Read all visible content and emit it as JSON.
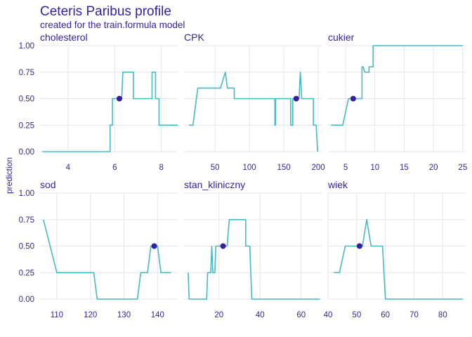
{
  "title": "Ceteris Paribus profile",
  "subtitle": "created for the train.formula model",
  "ylabel": "prediction",
  "colors": {
    "line": "#46bac2",
    "point": "#371ea3",
    "text": "#371ea3",
    "grid": "#e6e6ea"
  },
  "chart_data": {
    "type": "line",
    "ylim": [
      0,
      1
    ],
    "yticks": [
      0,
      0.25,
      0.5,
      0.75,
      1
    ],
    "ytick_labels": [
      "0.00",
      "0.25",
      "0.50",
      "0.75",
      "1.00"
    ],
    "grid": true,
    "panels": [
      {
        "name": "cholesterol",
        "xlim": [
          2.8,
          8.7
        ],
        "xticks": [
          4,
          6,
          8
        ],
        "xtick_labels": [
          "4",
          "6",
          "8"
        ],
        "observation": {
          "x": 6.2,
          "y": 0.5
        },
        "series": [
          [
            2.9,
            0
          ],
          [
            5.8,
            0
          ],
          [
            5.8,
            0.25
          ],
          [
            5.9,
            0.25
          ],
          [
            5.9,
            0.5
          ],
          [
            6.3,
            0.5
          ],
          [
            6.35,
            0.75
          ],
          [
            6.8,
            0.75
          ],
          [
            6.8,
            0.5
          ],
          [
            7.6,
            0.5
          ],
          [
            7.6,
            0.75
          ],
          [
            7.75,
            0.75
          ],
          [
            7.75,
            0.5
          ],
          [
            7.9,
            0.5
          ],
          [
            7.9,
            0.25
          ],
          [
            8.7,
            0.25
          ]
        ]
      },
      {
        "name": "CPK",
        "xlim": [
          5,
          205
        ],
        "xticks": [
          50,
          100,
          150,
          200
        ],
        "xtick_labels": [
          "50",
          "100",
          "150",
          "200"
        ],
        "observation": {
          "x": 168,
          "y": 0.5
        },
        "series": [
          [
            12,
            0.25
          ],
          [
            18,
            0.25
          ],
          [
            25,
            0.6
          ],
          [
            58,
            0.6
          ],
          [
            65,
            0.75
          ],
          [
            68,
            0.6
          ],
          [
            78,
            0.6
          ],
          [
            78,
            0.5
          ],
          [
            137,
            0.5
          ],
          [
            137,
            0.25
          ],
          [
            138,
            0.25
          ],
          [
            138,
            0.5
          ],
          [
            142,
            0.5
          ],
          [
            142,
            0.5
          ],
          [
            160,
            0.5
          ],
          [
            160,
            0.25
          ],
          [
            163,
            0.25
          ],
          [
            163,
            0.5
          ],
          [
            172,
            0.5
          ],
          [
            174,
            0.75
          ],
          [
            176,
            0.5
          ],
          [
            193,
            0.5
          ],
          [
            193,
            0.25
          ],
          [
            197,
            0.25
          ],
          [
            199,
            0
          ]
        ]
      },
      {
        "name": "cukier",
        "xlim": [
          2,
          25.5
        ],
        "xticks": [
          5,
          10,
          15,
          20,
          25
        ],
        "xtick_labels": [
          "5",
          "10",
          "15",
          "20",
          "25"
        ],
        "observation": {
          "x": 6.3,
          "y": 0.5
        },
        "series": [
          [
            2.5,
            0.25
          ],
          [
            4.5,
            0.25
          ],
          [
            5.5,
            0.5
          ],
          [
            7.8,
            0.5
          ],
          [
            7.8,
            0.8
          ],
          [
            8,
            0.8
          ],
          [
            8.3,
            0.75
          ],
          [
            9,
            0.75
          ],
          [
            9,
            0.8
          ],
          [
            9.7,
            0.8
          ],
          [
            9.7,
            1
          ],
          [
            25,
            1
          ]
        ]
      },
      {
        "name": "sod",
        "xlim": [
          105,
          146
        ],
        "xticks": [
          110,
          120,
          130,
          140
        ],
        "xtick_labels": [
          "110",
          "120",
          "130",
          "140"
        ],
        "observation": {
          "x": 139,
          "y": 0.5
        },
        "series": [
          [
            106,
            0.75
          ],
          [
            110,
            0.25
          ],
          [
            121,
            0.25
          ],
          [
            122,
            0
          ],
          [
            134,
            0
          ],
          [
            135,
            0.25
          ],
          [
            137,
            0.25
          ],
          [
            138,
            0.5
          ],
          [
            140,
            0.5
          ],
          [
            141,
            0.25
          ],
          [
            144,
            0.25
          ]
        ]
      },
      {
        "name": "stan_kliniczny",
        "xlim": [
          3,
          70
        ],
        "xticks": [
          20,
          40,
          60
        ],
        "xtick_labels": [
          "20",
          "40",
          "60"
        ],
        "observation": {
          "x": 22,
          "y": 0.5
        },
        "series": [
          [
            5,
            0.25
          ],
          [
            5.5,
            0
          ],
          [
            14,
            0
          ],
          [
            14.5,
            0.25
          ],
          [
            16,
            0.25
          ],
          [
            16.5,
            0.5
          ],
          [
            17,
            0.25
          ],
          [
            18,
            0.25
          ],
          [
            18.5,
            0.5
          ],
          [
            24,
            0.5
          ],
          [
            25,
            0.75
          ],
          [
            33,
            0.75
          ],
          [
            33,
            0.5
          ],
          [
            35,
            0.5
          ],
          [
            36,
            0
          ],
          [
            69,
            0
          ]
        ]
      },
      {
        "name": "wiek",
        "xlim": [
          40,
          88
        ],
        "xticks": [
          40,
          50,
          60,
          70,
          80
        ],
        "xtick_labels": [
          "40",
          "50",
          "60",
          "70",
          "80"
        ],
        "observation": {
          "x": 51,
          "y": 0.5
        },
        "series": [
          [
            42,
            0.25
          ],
          [
            44,
            0.25
          ],
          [
            46,
            0.5
          ],
          [
            52,
            0.5
          ],
          [
            53.5,
            0.75
          ],
          [
            55,
            0.5
          ],
          [
            59,
            0.5
          ],
          [
            60,
            0
          ],
          [
            87,
            0
          ]
        ]
      }
    ]
  }
}
